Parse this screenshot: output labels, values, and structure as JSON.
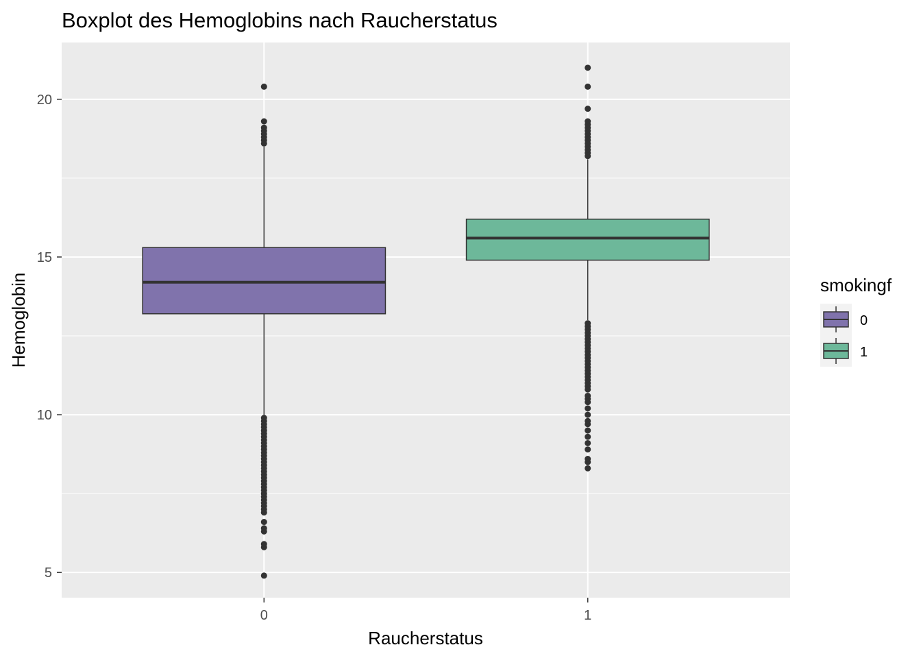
{
  "chart_data": {
    "type": "boxplot",
    "title": "Boxplot des Hemoglobins nach Raucherstatus",
    "xlabel": "Raucherstatus",
    "ylabel": "Hemoglobin",
    "categories": [
      "0",
      "1"
    ],
    "ylim": [
      4.2,
      21.8
    ],
    "yticks": [
      5,
      10,
      15,
      20
    ],
    "ytick_labels": [
      "5",
      "10",
      "15",
      "20"
    ],
    "grid": true,
    "legend": {
      "title": "smokingf",
      "position": "right",
      "entries": [
        {
          "label": "0",
          "color": "#8073ac"
        },
        {
          "label": "1",
          "color": "#6db89a"
        }
      ]
    },
    "series": [
      {
        "category": "0",
        "color": "#8073ac",
        "whisker_low": 10.0,
        "q1": 13.2,
        "median": 14.2,
        "q3": 15.3,
        "whisker_high": 18.5,
        "outliers": [
          4.9,
          5.8,
          5.9,
          6.3,
          6.4,
          6.6,
          6.9,
          7.0,
          7.1,
          7.2,
          7.3,
          7.4,
          7.5,
          7.6,
          7.7,
          7.8,
          7.9,
          8.0,
          8.1,
          8.2,
          8.3,
          8.4,
          8.5,
          8.6,
          8.7,
          8.8,
          8.9,
          9.0,
          9.1,
          9.2,
          9.3,
          9.4,
          9.5,
          9.6,
          9.7,
          9.8,
          9.9,
          18.6,
          18.7,
          18.8,
          18.9,
          19.0,
          19.1,
          19.3,
          20.4
        ]
      },
      {
        "category": "1",
        "color": "#6db89a",
        "whisker_low": 13.0,
        "q1": 14.9,
        "median": 15.6,
        "q3": 16.2,
        "whisker_high": 18.1,
        "outliers": [
          8.3,
          8.5,
          8.6,
          8.9,
          9.1,
          9.3,
          9.5,
          9.7,
          9.8,
          10.0,
          10.2,
          10.4,
          10.5,
          10.6,
          10.8,
          10.9,
          11.0,
          11.1,
          11.2,
          11.3,
          11.4,
          11.5,
          11.6,
          11.7,
          11.8,
          11.9,
          12.0,
          12.1,
          12.2,
          12.3,
          12.4,
          12.5,
          12.6,
          12.7,
          12.8,
          12.9,
          18.2,
          18.3,
          18.4,
          18.5,
          18.6,
          18.7,
          18.8,
          18.9,
          19.0,
          19.1,
          19.2,
          19.3,
          19.7,
          20.4,
          21.0
        ]
      }
    ]
  }
}
